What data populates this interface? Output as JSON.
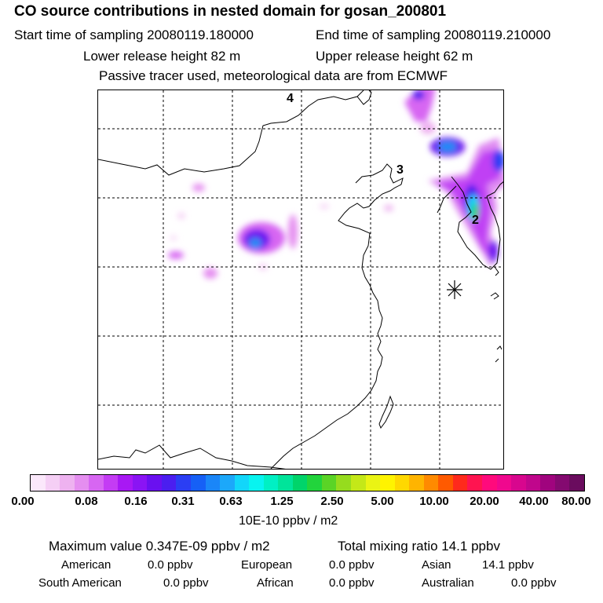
{
  "header": {
    "title": "CO  source contributions in nested domain for gosan_200801",
    "start_time": "Start time of sampling 20080119.180000",
    "end_time": "End time of sampling 20080119.210000",
    "lower_height": "Lower release height   82 m",
    "upper_height": "Upper release height   62 m",
    "note": "Passive tracer used, meteorological data are from ECMWF"
  },
  "map": {
    "labels": [
      "4",
      "3",
      "2"
    ],
    "colors": {
      "coast": "#000000",
      "grid": "#000000"
    }
  },
  "colorbar": {
    "colors": [
      "#fbe8fb",
      "#f5cff5",
      "#eeb2f0",
      "#e58ef0",
      "#d766f2",
      "#c43cf4",
      "#a818f4",
      "#8a14f4",
      "#6a10f0",
      "#4b1ef0",
      "#2b3ef4",
      "#1660f6",
      "#1a86f8",
      "#1ca8fa",
      "#12d6fa",
      "#08f4f0",
      "#00f0c4",
      "#00e49a",
      "#00d46a",
      "#22d43c",
      "#5ad426",
      "#96dc1e",
      "#c4e818",
      "#eaf414",
      "#fff400",
      "#ffd800",
      "#ffb400",
      "#ff8a00",
      "#ff5a00",
      "#ff2a1c",
      "#ff1450",
      "#ff0a7c",
      "#f0088e",
      "#d8068e",
      "#c0068c",
      "#a0047e",
      "#840a70",
      "#6a0c5e"
    ],
    "ticks": [
      "0.00",
      "0.08",
      "0.16",
      "0.31",
      "0.63",
      "1.25",
      "2.50",
      "5.00",
      "10.00",
      "20.00",
      "40.00",
      "80.00"
    ],
    "units": "10E-10 ppbv / m2"
  },
  "stats": {
    "maximum": "Maximum value  0.347E-09 ppbv / m2",
    "total": "Total mixing ratio       14.1 ppbv",
    "american_label": "American",
    "american_value": "0.0 ppbv",
    "european_label": "European",
    "european_value": "0.0 ppbv",
    "asian_label": "Asian",
    "asian_value": "14.1 ppbv",
    "south_american_label": "South American",
    "south_american_value": "0.0 ppbv",
    "african_label": "African",
    "african_value": "0.0 ppbv",
    "australian_label": "Australian",
    "australian_value": "0.0 ppbv"
  }
}
